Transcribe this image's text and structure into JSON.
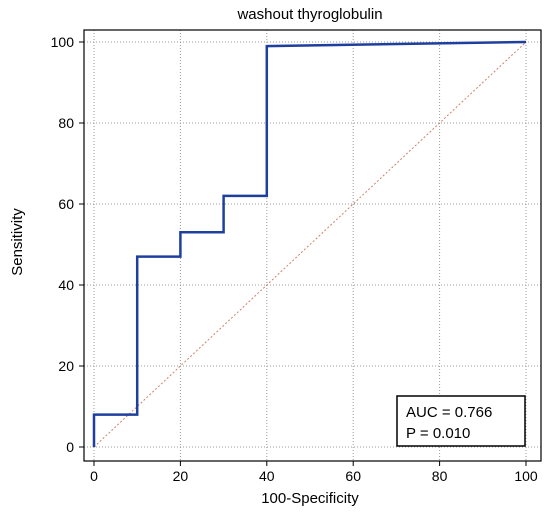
{
  "chart_data": {
    "type": "line",
    "title": "washout thyroglobulin",
    "xlabel": "100-Specificity",
    "ylabel": "Sensitivity",
    "xlim": [
      0,
      100
    ],
    "ylim": [
      0,
      100
    ],
    "xticks": [
      "0",
      "20",
      "40",
      "60",
      "80",
      "100"
    ],
    "yticks": [
      "0",
      "20",
      "40",
      "60",
      "80",
      "100"
    ],
    "grid": true,
    "series": [
      {
        "color": "#1f3f9f",
        "x": [
          0,
          0,
          10,
          10,
          20,
          20,
          30,
          30,
          40,
          40,
          100
        ],
        "y": [
          0,
          8,
          8,
          47,
          47,
          53,
          53,
          62,
          62,
          99,
          100
        ]
      },
      {
        "color": "#d08070",
        "dashed": true,
        "x": [
          0,
          100
        ],
        "y": [
          0,
          100
        ]
      }
    ],
    "annotation": {
      "auc_text": "AUC = 0.766",
      "p_text": "P = 0.010"
    }
  }
}
